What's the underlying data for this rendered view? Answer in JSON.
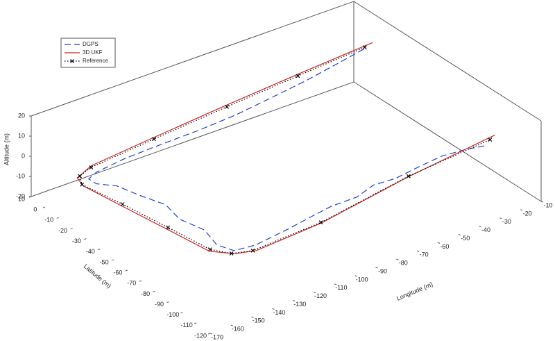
{
  "chart_data": {
    "type": "line3d",
    "xlabel": "Longitude (m)",
    "ylabel": "Latitude (m)",
    "zlabel": "Altitude (m)",
    "xlim": [
      -170,
      -10
    ],
    "ylim": [
      -120,
      10
    ],
    "zlim": [
      -20,
      20
    ],
    "xticks": [
      -170,
      -160,
      -150,
      -140,
      -130,
      -120,
      -110,
      -100,
      -90,
      -80,
      -70,
      -60,
      -50,
      -40,
      -30,
      -20,
      -10
    ],
    "yticks": [
      -120,
      -110,
      -100,
      -90,
      -80,
      -70,
      -60,
      -50,
      -40,
      -30,
      -20,
      -10,
      0,
      10
    ],
    "zticks": [
      -20,
      -10,
      0,
      10,
      20
    ],
    "legend": "upper left",
    "series": [
      {
        "name": "DGPS",
        "color": "#1f3fd0",
        "style": "dashed",
        "marker": null,
        "x": [
          -25,
          -40,
          -57,
          -75,
          -92,
          -110,
          -128,
          -145,
          -158,
          -162,
          -161,
          -155,
          -152,
          -148,
          -150,
          -146,
          -148,
          -145,
          -136,
          -120,
          -106,
          -96,
          -84,
          -74,
          -64,
          -52,
          -40,
          -30,
          -22
        ],
        "y": [
          -18,
          -20,
          -22,
          -23,
          -24,
          -23.5,
          -22,
          -21,
          -20,
          -20,
          -24,
          -30,
          -42,
          -55,
          -68,
          -80,
          -92,
          -100,
          -102,
          -101,
          -99,
          -97,
          -98,
          -95,
          -96,
          -95,
          -94,
          -96,
          -99
        ],
        "z": [
          14.6,
          13.5,
          12.2,
          10.8,
          9.6,
          8.3,
          7,
          5.8,
          3.5,
          1.5,
          0.8,
          0.6,
          1,
          1.5,
          1.8,
          1,
          0.5,
          0.6,
          0.8,
          1.5,
          1.8,
          1.4,
          1.8,
          2.2,
          2,
          2.5,
          2.6,
          2.8,
          3
        ]
      },
      {
        "name": "3D UKF",
        "color": "#d02020",
        "style": "solid",
        "marker": null,
        "x": [
          -20,
          -57,
          -92,
          -128,
          -158,
          -165,
          -166,
          -162,
          -158,
          -153,
          -146,
          -138,
          -106,
          -59,
          -15
        ],
        "y": [
          -17,
          -16.5,
          -16.5,
          -16.5,
          -16,
          -16,
          -22,
          -44,
          -70,
          -94,
          -102,
          -105.5,
          -105,
          -98.5,
          -95
        ],
        "z": [
          15.5,
          12.9,
          10.5,
          7.6,
          4.5,
          1,
          0.5,
          0.5,
          1.2,
          0.4,
          0.5,
          0.6,
          1.2,
          2.3,
          3.5
        ]
      },
      {
        "name": "Reference",
        "color": "#000000",
        "style": "dotted",
        "marker": "x",
        "x": [
          -24,
          -57,
          -92,
          -128,
          -159,
          -163,
          -166,
          -161,
          -157,
          -152,
          -147,
          -139,
          -106,
          -59,
          -18
        ],
        "y": [
          -17.3,
          -17.3,
          -17.3,
          -17.3,
          -17.3,
          -15,
          -21,
          -43,
          -70,
          -93,
          -101,
          -104.5,
          -104.5,
          -98,
          -96
        ],
        "z": [
          14.8,
          12.7,
          10.2,
          7.4,
          4.7,
          0.7,
          0.7,
          0.5,
          1.4,
          0.4,
          0.5,
          0.5,
          1.2,
          2.1,
          2.9
        ]
      }
    ]
  }
}
